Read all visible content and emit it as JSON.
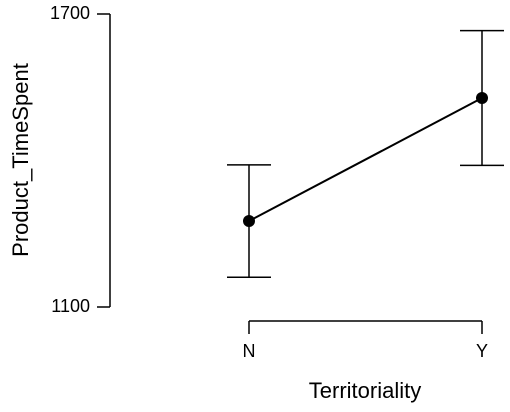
{
  "chart_data": {
    "type": "line",
    "x_label": "Territoriality",
    "y_label": "Product_TimeSpent",
    "categories": [
      "N",
      "Y"
    ],
    "values": [
      1276,
      1528
    ],
    "errors": [
      115,
      138
    ],
    "color": "#000000",
    "ylim": [
      1100,
      1700
    ],
    "yticks": [
      1100,
      1700
    ]
  }
}
